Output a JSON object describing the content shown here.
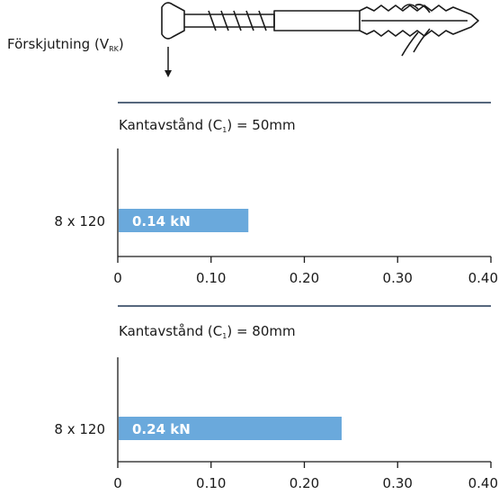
{
  "header": {
    "shear_label": "Förskjutning (V",
    "shear_label_sub": "RK",
    "shear_label_close": ")"
  },
  "colors": {
    "bar": "#6aa9dc",
    "axis": "#1a1a1a",
    "divider": "#1f3552",
    "text": "#1a1a1a"
  },
  "chart_data": [
    {
      "type": "bar",
      "orientation": "horizontal",
      "title_prefix": "Kantavstånd (C",
      "title_sub": "1",
      "title_suffix": ") = 50mm",
      "categories": [
        "8 x 120"
      ],
      "values": [
        0.14
      ],
      "data_labels": [
        "0.14 kN"
      ],
      "xlim": [
        0,
        0.4
      ],
      "xticks": [
        "0",
        "0.10",
        "0.20",
        "0.30",
        "0.40"
      ],
      "grid": false
    },
    {
      "type": "bar",
      "orientation": "horizontal",
      "title_prefix": "Kantavstånd (C",
      "title_sub": "1",
      "title_suffix": ") = 80mm",
      "categories": [
        "8 x 120"
      ],
      "values": [
        0.24
      ],
      "data_labels": [
        "0.24 kN"
      ],
      "xlim": [
        0,
        0.4
      ],
      "xticks": [
        "0",
        "0.10",
        "0.20",
        "0.30",
        "0.40"
      ],
      "grid": false
    }
  ]
}
